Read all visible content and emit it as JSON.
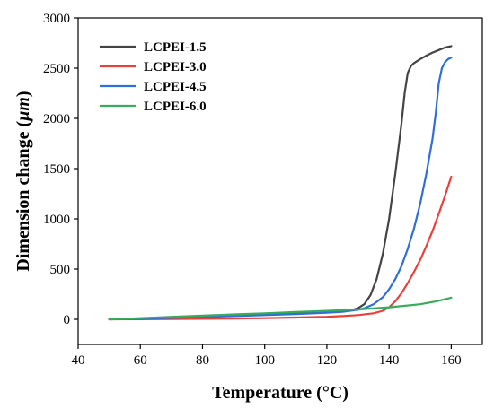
{
  "chart_data": {
    "type": "line",
    "xlabel": "Temperature (°C)",
    "ylabel_prefix": "Dimension change (",
    "ylabel_unit": "μm",
    "ylabel_suffix": ")",
    "xlim": [
      40,
      170
    ],
    "ylim": [
      -250,
      3000
    ],
    "xticks": [
      40,
      60,
      80,
      100,
      120,
      140,
      160
    ],
    "yticks": [
      0,
      500,
      1000,
      1500,
      2000,
      2500,
      3000
    ],
    "legend_position": "top-left",
    "grid": false,
    "series": [
      {
        "name": "LCPEI-1.5",
        "color": "#444444",
        "x": [
          50,
          60,
          70,
          80,
          90,
          100,
          110,
          120,
          125,
          128,
          130,
          132,
          134,
          136,
          138,
          140,
          142,
          144,
          145,
          146,
          147,
          148,
          150,
          152,
          154,
          156,
          158,
          160
        ],
        "y": [
          0,
          8,
          18,
          28,
          38,
          48,
          58,
          70,
          80,
          92,
          110,
          150,
          240,
          400,
          650,
          1000,
          1450,
          1950,
          2250,
          2450,
          2520,
          2550,
          2590,
          2625,
          2655,
          2680,
          2705,
          2720
        ]
      },
      {
        "name": "LCPEI-3.0",
        "color": "#e8413d",
        "x": [
          50,
          60,
          70,
          80,
          90,
          100,
          110,
          120,
          125,
          130,
          135,
          138,
          140,
          142,
          144,
          146,
          148,
          150,
          152,
          154,
          156,
          158,
          160
        ],
        "y": [
          0,
          1,
          3,
          5,
          8,
          12,
          18,
          25,
          32,
          42,
          60,
          85,
          120,
          180,
          260,
          360,
          470,
          590,
          730,
          880,
          1050,
          1230,
          1420
        ]
      },
      {
        "name": "LCPEI-4.5",
        "color": "#2f6fd6",
        "x": [
          50,
          60,
          70,
          80,
          90,
          100,
          110,
          120,
          125,
          130,
          132,
          135,
          138,
          140,
          142,
          144,
          146,
          148,
          150,
          152,
          154,
          155,
          156,
          157,
          158,
          159,
          160
        ],
        "y": [
          0,
          6,
          14,
          22,
          32,
          42,
          52,
          65,
          75,
          95,
          110,
          150,
          220,
          300,
          400,
          530,
          700,
          900,
          1150,
          1450,
          1800,
          2050,
          2350,
          2500,
          2560,
          2590,
          2605
        ]
      },
      {
        "name": "LCPEI-6.0",
        "color": "#3aaa5c",
        "x": [
          50,
          60,
          70,
          80,
          90,
          100,
          110,
          120,
          130,
          140,
          150,
          155,
          160
        ],
        "y": [
          0,
          12,
          25,
          37,
          49,
          60,
          72,
          84,
          98,
          120,
          150,
          178,
          215
        ]
      }
    ]
  }
}
